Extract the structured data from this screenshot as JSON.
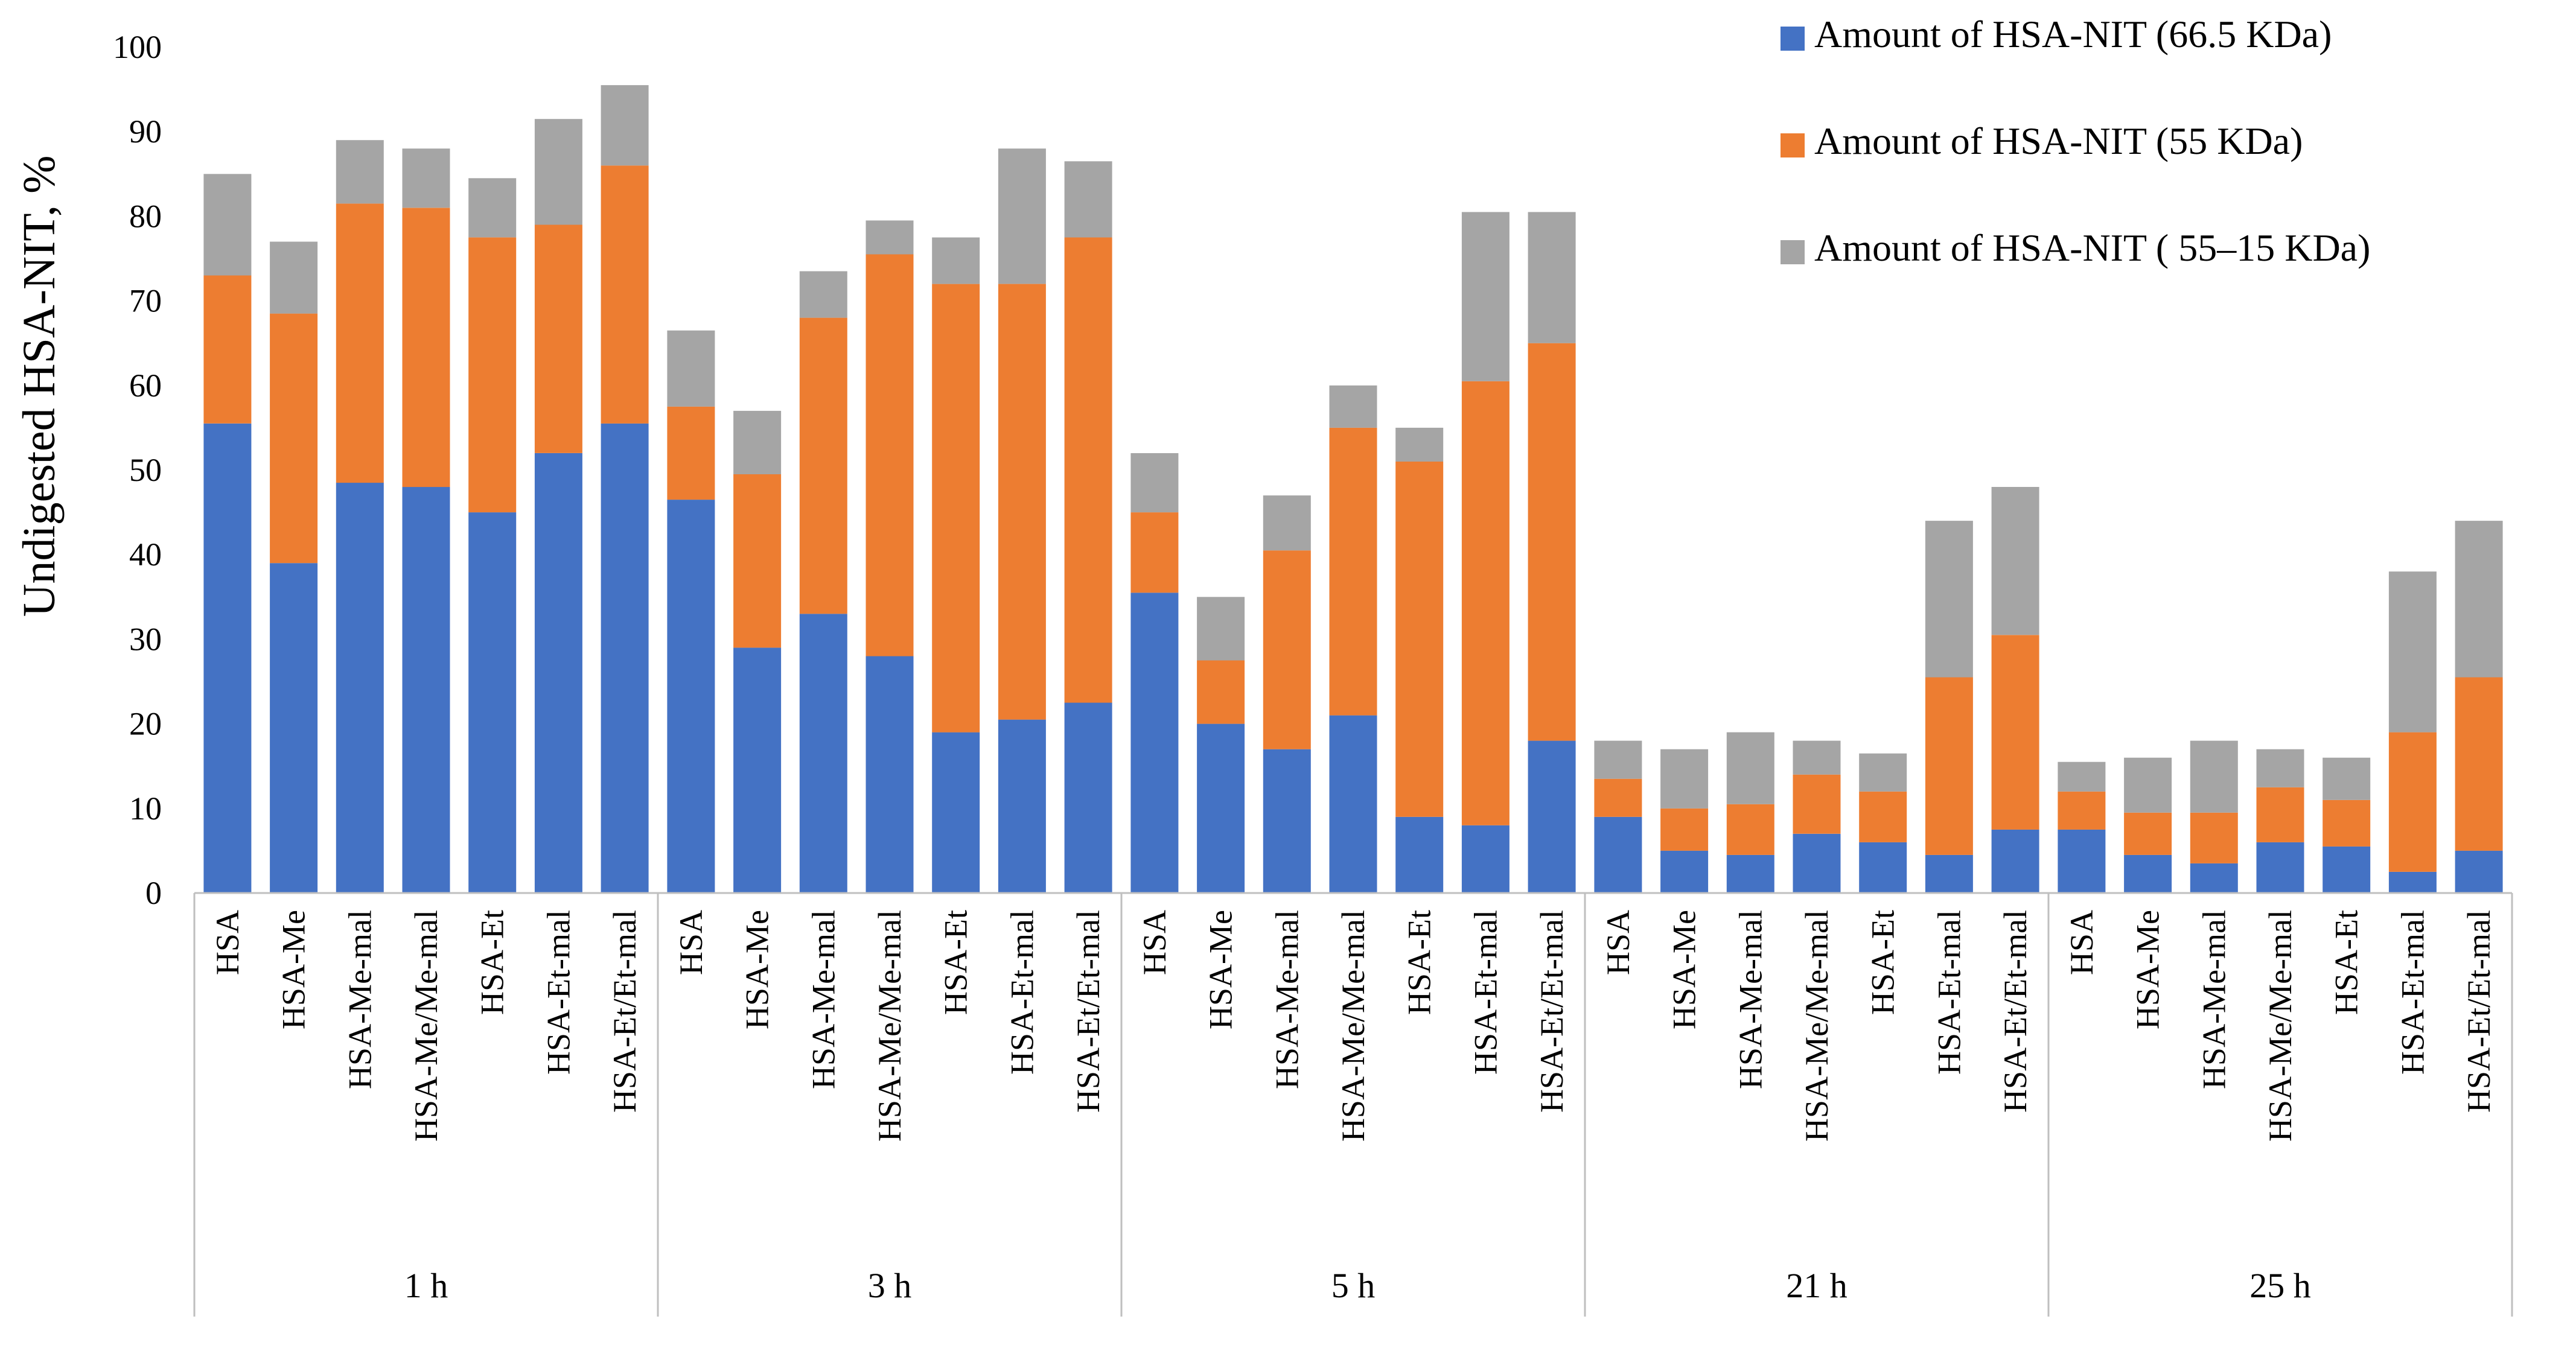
{
  "chart_data": {
    "type": "stacked-bar",
    "title": "",
    "ylabel": "Undigested HSA-NIT, %",
    "xlabel": "",
    "ylim": [
      0,
      100
    ],
    "yticks": [
      0,
      10,
      20,
      30,
      40,
      50,
      60,
      70,
      80,
      90,
      100
    ],
    "grid": false,
    "legend_position": "top-right",
    "groups": [
      "1 h",
      "3 h",
      "5 h",
      "21 h",
      "25 h"
    ],
    "categories": [
      "HSA",
      "HSA-Me",
      "HSA-Me-mal",
      "HSA-Me/Me-mal",
      "HSA-Et",
      "HSA-Et-mal",
      "HSA-Et/Et-mal"
    ],
    "series": [
      {
        "name": "Amount of HSA-NIT (66.5 KDa)",
        "color": "#4472C4",
        "values": [
          [
            55.5,
            39,
            48.5,
            48,
            45,
            52,
            55.5
          ],
          [
            46.5,
            29,
            33,
            28,
            19,
            20.5,
            22.5
          ],
          [
            35.5,
            20,
            17,
            21,
            9,
            8,
            18
          ],
          [
            9,
            5,
            4.5,
            7,
            6,
            4.5,
            7.5
          ],
          [
            7.5,
            4.5,
            3.5,
            6,
            5.5,
            2.5,
            5
          ]
        ]
      },
      {
        "name": "Amount of HSA-NIT (55 KDa)",
        "color": "#ED7D31",
        "values": [
          [
            17.5,
            29.5,
            33,
            33,
            32.5,
            27,
            30.5
          ],
          [
            11,
            20.5,
            35,
            47.5,
            53,
            51.5,
            55
          ],
          [
            9.5,
            7.5,
            23.5,
            34,
            42,
            52.5,
            47
          ],
          [
            4.5,
            5,
            6,
            7,
            6,
            21,
            23
          ],
          [
            4.5,
            5,
            6,
            6.5,
            5.5,
            16.5,
            20.5
          ]
        ]
      },
      {
        "name": "Amount of HSA-NIT ( 55–15 KDa)",
        "color": "#A5A5A5",
        "values": [
          [
            12,
            8.5,
            7.5,
            7,
            7,
            12.5,
            9.5
          ],
          [
            9,
            7.5,
            5.5,
            4,
            5.5,
            16,
            9
          ],
          [
            7,
            7.5,
            6.5,
            5,
            4,
            20,
            15.5
          ],
          [
            4.5,
            7,
            8.5,
            4,
            4.5,
            18.5,
            17.5
          ],
          [
            3.5,
            6.5,
            8.5,
            4.5,
            5,
            19,
            18.5
          ]
        ]
      }
    ]
  }
}
